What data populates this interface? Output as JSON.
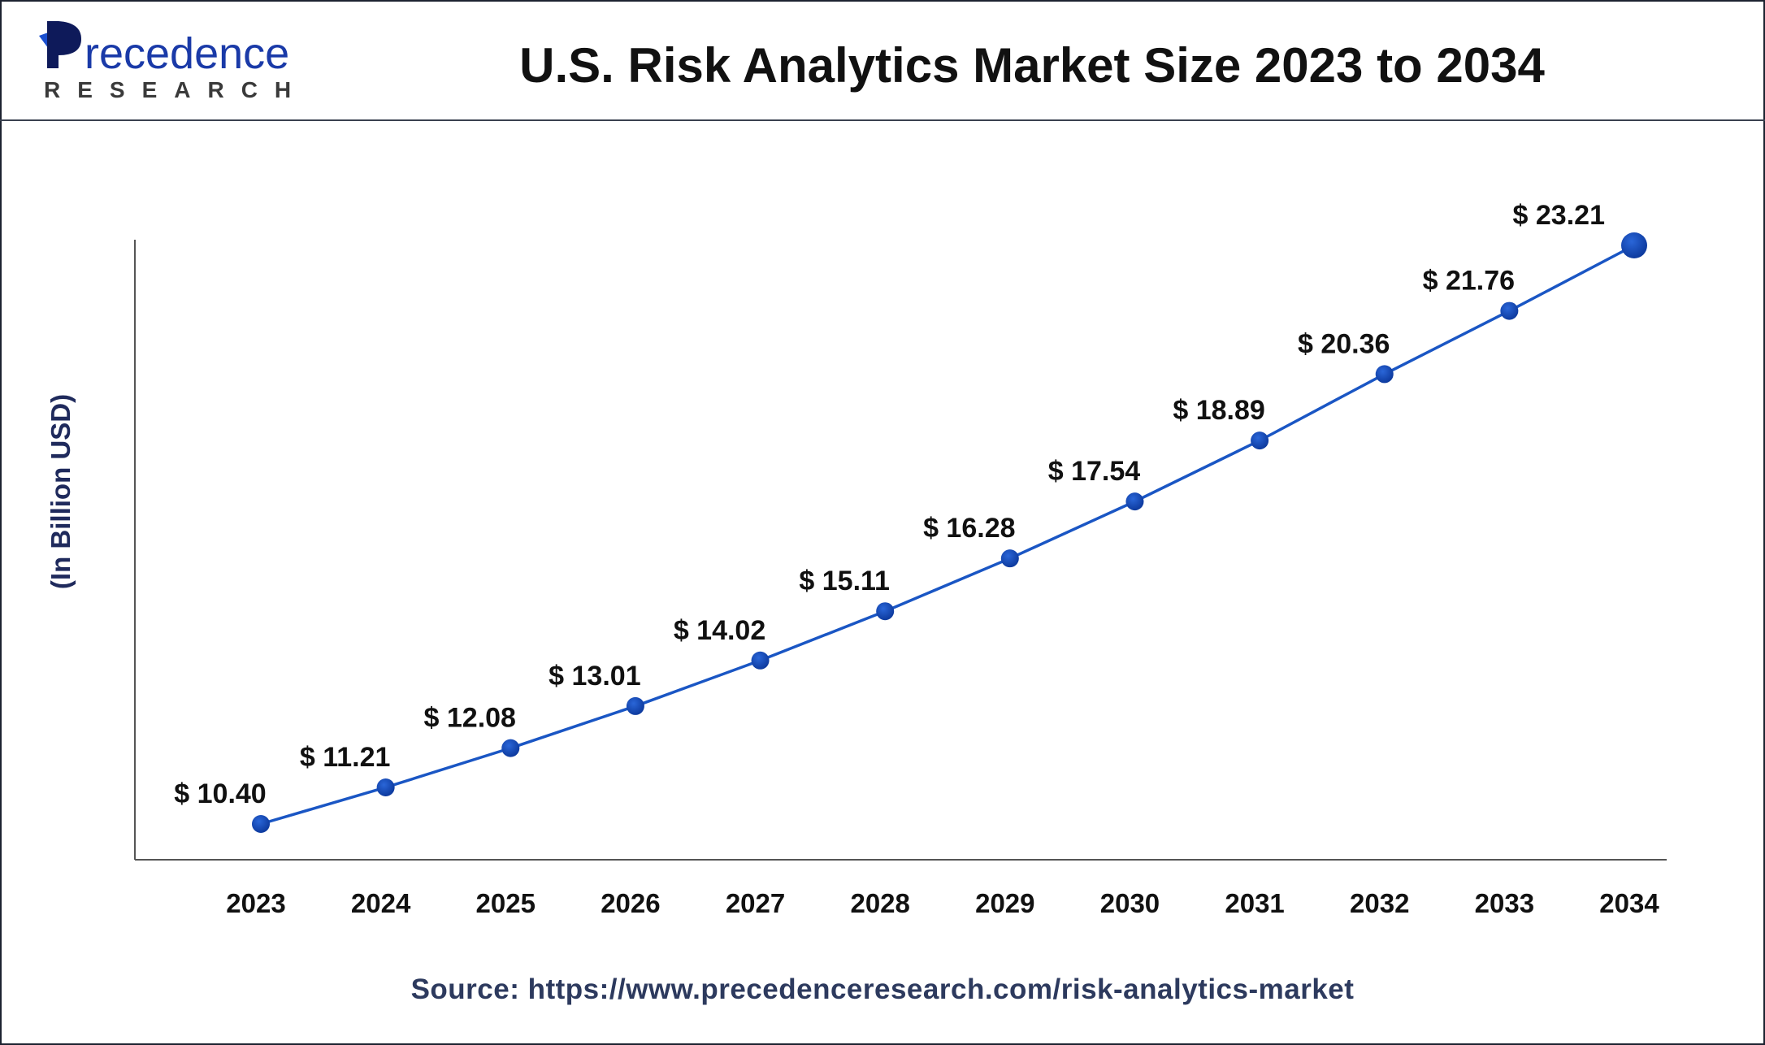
{
  "header": {
    "logo_text": "Precedence",
    "logo_subtext": "RESEARCH",
    "title": "U.S. Risk Analytics Market Size 2023 to 2034"
  },
  "source": "Source: https://www.precedenceresearch.com/risk-analytics-market",
  "chart_data": {
    "type": "line",
    "title": "U.S. Risk Analytics Market Size 2023 to 2034",
    "xlabel": "",
    "ylabel": "(In Billion USD)",
    "categories": [
      "2023",
      "2024",
      "2025",
      "2026",
      "2027",
      "2028",
      "2029",
      "2030",
      "2031",
      "2032",
      "2033",
      "2034"
    ],
    "values": [
      10.4,
      11.21,
      12.08,
      13.01,
      14.02,
      15.11,
      16.28,
      17.54,
      18.89,
      20.36,
      21.76,
      23.21
    ],
    "data_labels": [
      "$ 10.40",
      "$ 11.21",
      "$ 12.08",
      "$ 13.01",
      "$ 14.02",
      "$ 15.11",
      "$ 16.28",
      "$ 17.54",
      "$ 18.89",
      "$ 20.36",
      "$ 21.76",
      "$ 23.21"
    ],
    "ylim": [
      9.8,
      24
    ],
    "grid": false,
    "colors": {
      "line": "#1a56c4",
      "marker": "#0d3a9e",
      "text": "#111111",
      "axis": "#555555"
    }
  }
}
